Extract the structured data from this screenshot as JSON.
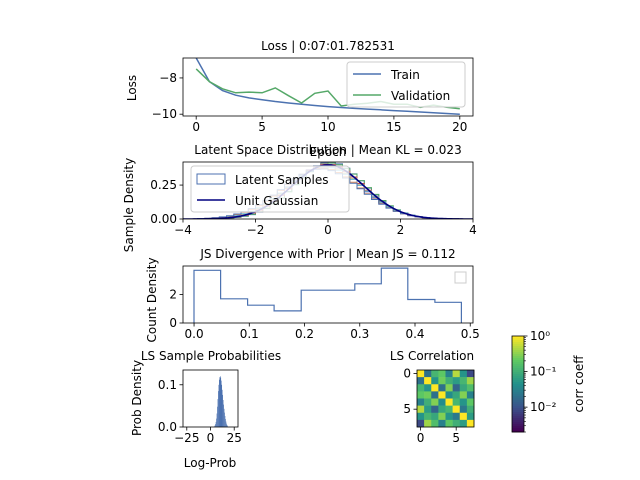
{
  "figure": {
    "background": "#ffffff"
  },
  "loss_panel": {
    "title": "Loss | 0:07:01.782531",
    "xlabel": "Epoch",
    "ylabel": "Loss",
    "legend": {
      "placement": "upper-right",
      "entries": [
        "Train",
        "Validation"
      ]
    }
  },
  "latent_panel": {
    "title": "Latent Space Distribution | Mean KL = 0.023",
    "ylabel": "Sample Density",
    "legend": {
      "placement": "upper-left",
      "entries": [
        "Latent Samples",
        "Unit Gaussian"
      ]
    }
  },
  "js_panel": {
    "title": "JS Divergence with Prior | Mean JS = 0.112",
    "ylabel": "Count Density"
  },
  "prob_panel": {
    "title": "LS Sample Probabilities",
    "xlabel": "Log-Prob",
    "ylabel": "Prob Density"
  },
  "corr_panel": {
    "title": "LS Correlation",
    "colorbar_label": "corr coeff"
  },
  "chart_data": [
    {
      "id": "loss",
      "type": "line",
      "title": "Loss | 0:07:01.782531",
      "xlabel": "Epoch",
      "ylabel": "Loss",
      "xlim": [
        -1,
        21
      ],
      "ylim": [
        -10.1,
        -6.9
      ],
      "xticks": [
        0,
        5,
        10,
        15,
        20
      ],
      "yticks": [
        -8,
        -10
      ],
      "ytick_labels": [
        "−8",
        "−10"
      ],
      "series": [
        {
          "name": "Train",
          "color": "#4c72b0",
          "x": [
            0,
            1,
            2,
            3,
            4,
            5,
            6,
            7,
            8,
            9,
            10,
            11,
            12,
            13,
            14,
            15,
            16,
            17,
            18,
            19,
            20
          ],
          "y": [
            -6.9,
            -8.2,
            -8.7,
            -8.95,
            -9.1,
            -9.2,
            -9.3,
            -9.38,
            -9.45,
            -9.52,
            -9.58,
            -9.63,
            -9.68,
            -9.72,
            -9.76,
            -9.8,
            -9.84,
            -9.88,
            -9.92,
            -9.96,
            -10.0
          ]
        },
        {
          "name": "Validation",
          "color": "#55a868",
          "x": [
            0,
            1,
            2,
            3,
            4,
            5,
            6,
            7,
            8,
            9,
            10,
            11,
            12,
            13,
            14,
            15,
            16,
            17,
            18,
            19,
            20
          ],
          "y": [
            -7.5,
            -8.2,
            -8.6,
            -8.82,
            -8.78,
            -8.82,
            -8.55,
            -8.98,
            -9.38,
            -8.85,
            -8.72,
            -9.55,
            -9.45,
            -9.4,
            -9.3,
            -9.45,
            -9.45,
            -9.62,
            -9.5,
            -9.62,
            -9.7
          ]
        }
      ]
    },
    {
      "id": "latent",
      "type": "area",
      "title": "Latent Space Distribution | Mean KL = 0.023",
      "ylabel": "Sample Density",
      "xlim": [
        -4,
        4
      ],
      "ylim": [
        0,
        0.42
      ],
      "xticks": [
        -4,
        -2,
        0,
        2,
        4
      ],
      "xtick_labels": [
        "−4",
        "−2",
        "0",
        "2",
        "4"
      ],
      "yticks": [
        0.0,
        0.25
      ],
      "ytick_labels": [
        "0.00",
        "0.25"
      ],
      "series": [
        {
          "name": "Latent Samples",
          "color": "#4c72b0",
          "kind": "step-histograms",
          "count": 8,
          "mean": 0.05,
          "sd_min": 0.95,
          "sd_max": 1.08
        },
        {
          "name": "Unit Gaussian",
          "color": "#000080",
          "kind": "pdf",
          "mean": 0,
          "sd": 1
        }
      ],
      "extra_hist_colors": [
        "#55a868",
        "#c44e52",
        "#8172b2",
        "#ccb974",
        "#64b5cd",
        "#dd8452",
        "#4c72b0"
      ]
    },
    {
      "id": "js",
      "type": "bar",
      "title": "JS Divergence with Prior | Mean JS = 0.112",
      "ylabel": "Count Density",
      "xlim": [
        -0.02,
        0.505
      ],
      "ylim": [
        0,
        4.0
      ],
      "xticks": [
        0.0,
        0.1,
        0.2,
        0.3,
        0.4,
        0.5
      ],
      "xtick_labels": [
        "0.0",
        "0.1",
        "0.2",
        "0.3",
        "0.4",
        "0.5"
      ],
      "yticks": [
        0,
        2
      ],
      "bin_edges": [
        0.0,
        0.048,
        0.097,
        0.145,
        0.194,
        0.242,
        0.291,
        0.339,
        0.387,
        0.436,
        0.484
      ],
      "values": [
        3.7,
        1.7,
        1.25,
        0.85,
        2.3,
        2.3,
        2.75,
        3.85,
        1.65,
        1.45
      ],
      "color": "#4c72b0",
      "legend": "empty box, upper-right"
    },
    {
      "id": "logprob",
      "type": "bar",
      "title": "LS Sample Probabilities",
      "xlabel": "Log-Prob",
      "ylabel": "Prob Density",
      "xlim": [
        -29,
        29
      ],
      "ylim": [
        0,
        0.135
      ],
      "xticks": [
        -25,
        0,
        25
      ],
      "xtick_labels": [
        "−25",
        "0",
        "25"
      ],
      "yticks": [
        0.0,
        0.1
      ],
      "ytick_labels": [
        "0.0",
        "0.1"
      ],
      "color": "#4c72b0",
      "bin_start": 4,
      "bin_width": 0.5,
      "values": [
        0.002,
        0.004,
        0.007,
        0.012,
        0.02,
        0.032,
        0.048,
        0.066,
        0.085,
        0.1,
        0.112,
        0.118,
        0.12,
        0.117,
        0.11,
        0.1,
        0.088,
        0.076,
        0.064,
        0.053,
        0.043,
        0.034,
        0.026,
        0.019,
        0.013,
        0.008,
        0.005,
        0.003
      ]
    },
    {
      "id": "correlation",
      "type": "heatmap",
      "title": "LS Correlation",
      "xticks": [
        0,
        5
      ],
      "yticks": [
        0,
        5
      ],
      "colorscale": "viridis",
      "scale": "log",
      "colorbar": {
        "label": "corr coeff",
        "range": [
          0.002,
          1.0
        ],
        "ticks": [
          "10⁰",
          "10⁻¹",
          "10⁻²"
        ]
      },
      "matrix": [
        [
          1.0,
          0.02,
          0.12,
          0.2,
          0.03,
          0.5,
          0.05,
          0.008
        ],
        [
          0.02,
          1.0,
          0.05,
          0.25,
          0.1,
          0.06,
          0.12,
          0.4
        ],
        [
          0.12,
          0.05,
          1.0,
          0.02,
          0.3,
          0.015,
          0.08,
          0.15
        ],
        [
          0.2,
          0.25,
          0.02,
          1.0,
          0.04,
          0.08,
          0.3,
          0.03
        ],
        [
          0.03,
          0.1,
          0.3,
          0.04,
          1.0,
          0.12,
          0.05,
          0.2
        ],
        [
          0.5,
          0.06,
          0.015,
          0.08,
          0.12,
          1.0,
          0.025,
          0.1
        ],
        [
          0.05,
          0.12,
          0.08,
          0.3,
          0.05,
          0.025,
          1.0,
          0.06
        ],
        [
          0.008,
          0.4,
          0.15,
          0.03,
          0.2,
          0.1,
          0.06,
          1.0
        ]
      ]
    }
  ]
}
